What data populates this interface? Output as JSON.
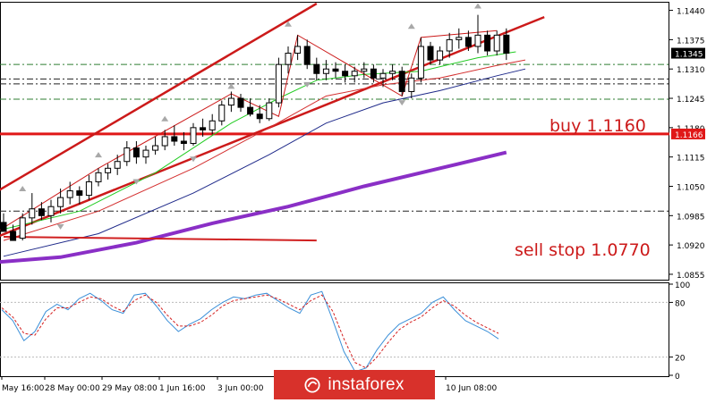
{
  "chart_data": [
    {
      "type": "candlestick",
      "panel": "price",
      "ylim": [
        1.0845,
        1.1455
      ],
      "y_ticks": [
        "1.1440",
        "1.1375",
        "1.1310",
        "1.1245",
        "1.1180",
        "1.1115",
        "1.1050",
        "1.0985",
        "1.0920",
        "1.0855"
      ],
      "current_price_label": "1.1345",
      "level_price_label": "1.1166",
      "level_price": 1.1166,
      "current_price": 1.1345,
      "annotations": [
        {
          "text": "buy 1.1160",
          "color": "#cc1a1a"
        },
        {
          "text": "sell stop 1.0770",
          "color": "#cc1a1a"
        }
      ],
      "candles": [
        [
          1.097,
          1.099,
          1.0955,
          1.095
        ],
        [
          1.095,
          1.0965,
          1.0935,
          1.093
        ],
        [
          1.0935,
          1.099,
          1.093,
          1.098
        ],
        [
          1.098,
          1.1035,
          1.0965,
          1.1
        ],
        [
          1.1,
          1.1015,
          1.0975,
          1.0985
        ],
        [
          1.0985,
          1.102,
          1.097,
          1.1005
        ],
        [
          1.1005,
          1.1045,
          1.099,
          1.1025
        ],
        [
          1.1025,
          1.106,
          1.101,
          1.104
        ],
        [
          1.104,
          1.105,
          1.101,
          1.103
        ],
        [
          1.103,
          1.1075,
          1.102,
          1.106
        ],
        [
          1.106,
          1.109,
          1.105,
          1.108
        ],
        [
          1.108,
          1.11,
          1.1065,
          1.109
        ],
        [
          1.109,
          1.112,
          1.1075,
          1.1105
        ],
        [
          1.1105,
          1.115,
          1.1095,
          1.1135
        ],
        [
          1.1135,
          1.115,
          1.11,
          1.1115
        ],
        [
          1.1115,
          1.114,
          1.11,
          1.113
        ],
        [
          1.113,
          1.116,
          1.112,
          1.114
        ],
        [
          1.114,
          1.1175,
          1.113,
          1.116
        ],
        [
          1.116,
          1.1185,
          1.114,
          1.115
        ],
        [
          1.115,
          1.117,
          1.113,
          1.1145
        ],
        [
          1.1145,
          1.119,
          1.114,
          1.118
        ],
        [
          1.118,
          1.12,
          1.116,
          1.1175
        ],
        [
          1.1175,
          1.121,
          1.1165,
          1.1195
        ],
        [
          1.1195,
          1.124,
          1.1185,
          1.123
        ],
        [
          1.123,
          1.126,
          1.1215,
          1.1245
        ],
        [
          1.1245,
          1.1255,
          1.1215,
          1.1225
        ],
        [
          1.1225,
          1.1245,
          1.1205,
          1.121
        ],
        [
          1.121,
          1.123,
          1.119,
          1.12
        ],
        [
          1.12,
          1.1245,
          1.1195,
          1.1235
        ],
        [
          1.1235,
          1.1335,
          1.1225,
          1.132
        ],
        [
          1.132,
          1.136,
          1.13,
          1.1345
        ],
        [
          1.1345,
          1.1385,
          1.133,
          1.136
        ],
        [
          1.136,
          1.1375,
          1.131,
          1.132
        ],
        [
          1.132,
          1.1335,
          1.1285,
          1.13
        ],
        [
          1.13,
          1.133,
          1.1285,
          1.131
        ],
        [
          1.131,
          1.1325,
          1.129,
          1.1305
        ],
        [
          1.1305,
          1.132,
          1.128,
          1.1295
        ],
        [
          1.1295,
          1.1315,
          1.128,
          1.1305
        ],
        [
          1.1305,
          1.1325,
          1.129,
          1.131
        ],
        [
          1.131,
          1.132,
          1.128,
          1.129
        ],
        [
          1.129,
          1.131,
          1.127,
          1.13
        ],
        [
          1.13,
          1.132,
          1.1285,
          1.1305
        ],
        [
          1.1305,
          1.1315,
          1.125,
          1.126
        ],
        [
          1.126,
          1.13,
          1.1245,
          1.129
        ],
        [
          1.129,
          1.138,
          1.128,
          1.136
        ],
        [
          1.136,
          1.137,
          1.132,
          1.133
        ],
        [
          1.133,
          1.136,
          1.132,
          1.135
        ],
        [
          1.135,
          1.139,
          1.1335,
          1.1375
        ],
        [
          1.1375,
          1.14,
          1.1355,
          1.138
        ],
        [
          1.138,
          1.1395,
          1.135,
          1.136
        ],
        [
          1.136,
          1.143,
          1.1345,
          1.1385
        ],
        [
          1.1385,
          1.1395,
          1.134,
          1.135
        ],
        [
          1.135,
          1.1395,
          1.134,
          1.1385
        ],
        [
          1.1385,
          1.14,
          1.133,
          1.1345
        ]
      ],
      "moving_averages": [
        {
          "name": "",
          "color": "#22cc22",
          "values": [
            [
              0,
              1.0955
            ],
            [
              8,
              1.0995
            ],
            [
              16,
              1.108
            ],
            [
              24,
              1.119
            ],
            [
              29,
              1.1245
            ],
            [
              33,
              1.1285
            ],
            [
              38,
              1.1298
            ],
            [
              44,
              1.1305
            ],
            [
              50,
              1.1335
            ],
            [
              54,
              1.1348
            ]
          ]
        },
        {
          "name": "",
          "color": "#d43030",
          "values": [
            [
              0,
              1.093
            ],
            [
              10,
              1.0995
            ],
            [
              20,
              1.109
            ],
            [
              28,
              1.118
            ],
            [
              34,
              1.125
            ],
            [
              40,
              1.1275
            ],
            [
              46,
              1.129
            ],
            [
              52,
              1.1318
            ],
            [
              55,
              1.133
            ]
          ]
        },
        {
          "name": "",
          "color": "#1f2a8a",
          "values": [
            [
              0,
              1.0895
            ],
            [
              10,
              1.0945
            ],
            [
              20,
              1.1035
            ],
            [
              28,
              1.112
            ],
            [
              34,
              1.119
            ],
            [
              40,
              1.1235
            ],
            [
              46,
              1.1262
            ],
            [
              52,
              1.1295
            ],
            [
              55,
              1.131
            ]
          ]
        },
        {
          "name": "",
          "color": "#8a2fc6",
          "values": [
            [
              -3,
              1.0878
            ],
            [
              6,
              1.0893
            ],
            [
              14,
              1.0925
            ],
            [
              22,
              1.0968
            ],
            [
              30,
              1.1005
            ],
            [
              38,
              1.105
            ],
            [
              46,
              1.109
            ],
            [
              53,
              1.1125
            ]
          ]
        },
        {
          "name": "",
          "color": "#d02020",
          "values": [
            [
              0,
              1.0938
            ],
            [
              33,
              1.093
            ]
          ]
        }
      ],
      "dashed_levels": [
        {
          "price": 1.132,
          "color": "#2e7d32"
        },
        {
          "price": 1.1288,
          "color": "#222222"
        },
        {
          "price": 1.1277,
          "color": "#222222"
        },
        {
          "price": 1.1243,
          "color": "#2e7d32"
        },
        {
          "price": 1.0995,
          "color": "#222222"
        }
      ],
      "channel_lines": [
        {
          "color": "#cc1a1a",
          "from": [
            -4,
            1.0998
          ],
          "to": [
            33,
            1.1455
          ]
        },
        {
          "color": "#cc1a1a",
          "from": [
            -4,
            1.091
          ],
          "to": [
            57,
            1.1425
          ]
        }
      ]
    },
    {
      "type": "line",
      "panel": "oscillator",
      "ylim": [
        0,
        100
      ],
      "y_ticks": [
        "100",
        "80",
        "20",
        "0"
      ],
      "series": [
        {
          "name": "",
          "color": "#3a8fd8",
          "values": [
            72,
            60,
            38,
            48,
            70,
            78,
            72,
            84,
            90,
            82,
            72,
            68,
            88,
            90,
            76,
            60,
            48,
            56,
            62,
            72,
            80,
            86,
            84,
            88,
            90,
            82,
            74,
            68,
            88,
            92,
            60,
            26,
            4,
            8,
            28,
            44,
            56,
            62,
            68,
            80,
            86,
            72,
            60,
            54,
            48,
            40
          ]
        },
        {
          "name": "",
          "color": "#d42020",
          "values": [
            74,
            64,
            46,
            44,
            62,
            74,
            74,
            80,
            86,
            84,
            76,
            70,
            82,
            88,
            80,
            66,
            54,
            54,
            58,
            66,
            76,
            82,
            84,
            86,
            88,
            84,
            78,
            72,
            82,
            88,
            70,
            40,
            14,
            8,
            20,
            36,
            50,
            58,
            64,
            74,
            82,
            76,
            66,
            58,
            52,
            46
          ]
        }
      ]
    }
  ],
  "x_axis_labels": [
    "May 16:00",
    "28 May 00:00",
    "29 May 08:00",
    "1 Jun 16:00",
    "3 Jun 00:00",
    "10 Jun 08:00"
  ],
  "watermark": {
    "text": "instaforex"
  }
}
